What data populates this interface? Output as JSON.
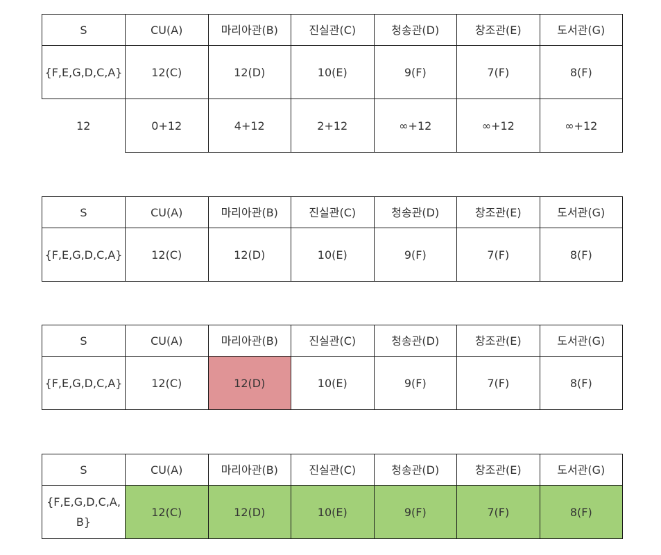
{
  "headers": [
    "S",
    "CU(A)",
    "마리아관(B)",
    "진실관(C)",
    "청송관(D)",
    "창조관(E)",
    "도서관(G)"
  ],
  "colors": {
    "highlight_red": "#e09496",
    "highlight_green": "#a2d078",
    "border": "#1a1a1a"
  },
  "table1": {
    "set": "{F,E,G,D,C,A}",
    "values": [
      "12(C)",
      "12(D)",
      "10(E)",
      "9(F)",
      "7(F)",
      "8(F)"
    ],
    "cost_label": "12",
    "costs": [
      "0+12",
      "4+12",
      "2+12",
      "∞+12",
      "∞+12",
      "∞+12"
    ]
  },
  "table2": {
    "set": "{F,E,G,D,C,A}",
    "values": [
      "12(C)",
      "12(D)",
      "10(E)",
      "9(F)",
      "7(F)",
      "8(F)"
    ]
  },
  "table3": {
    "set": "{F,E,G,D,C,A}",
    "values": [
      "12(C)",
      "12(D)",
      "10(E)",
      "9(F)",
      "7(F)",
      "8(F)"
    ],
    "highlighted_column": "마리아관(B)"
  },
  "table4": {
    "set": "{F,E,G,D,C,A,B}",
    "values": [
      "12(C)",
      "12(D)",
      "10(E)",
      "9(F)",
      "7(F)",
      "8(F)"
    ],
    "highlighted_columns": [
      "CU(A)",
      "마리아관(B)",
      "진실관(C)",
      "청송관(D)",
      "창조관(E)",
      "도서관(G)"
    ]
  }
}
